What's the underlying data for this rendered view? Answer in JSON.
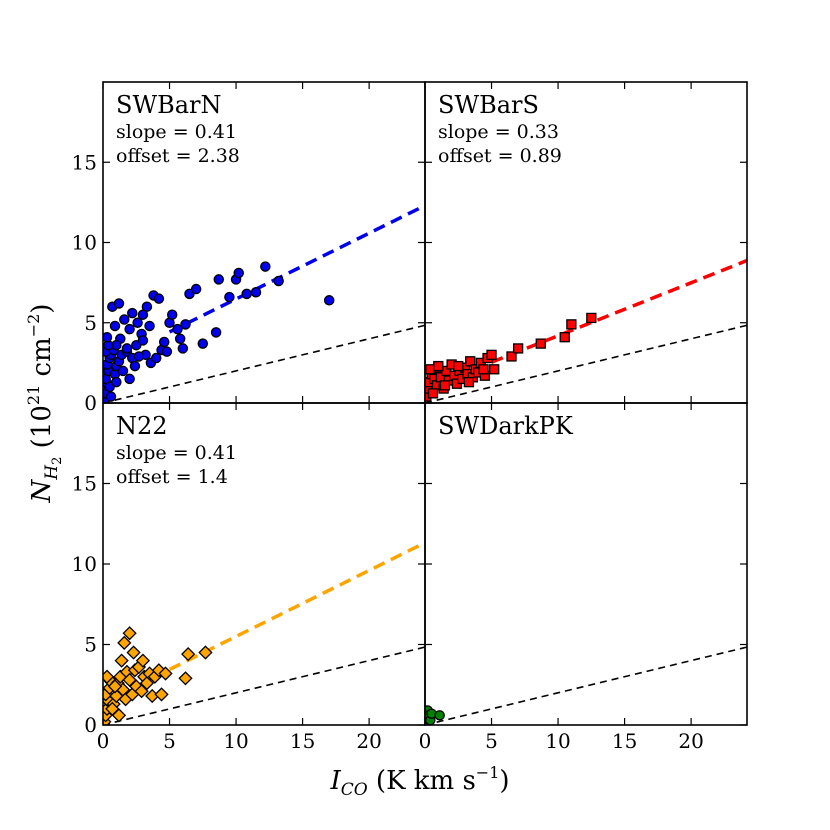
{
  "chart_data": {
    "type": "scatter",
    "layout": "2x2 grid, shared axes",
    "xlabel": "I_CO (K km s^-1)",
    "ylabel": "N_H2 (10^21 cm^-2)",
    "xlim": [
      0,
      24.2
    ],
    "ylim": [
      0,
      20
    ],
    "xticks": [
      0,
      5,
      10,
      15,
      20
    ],
    "yticks": [
      0,
      5,
      10,
      15
    ],
    "reference_line": {
      "slope": 0.2,
      "offset": 0,
      "style": "dashed",
      "color": "#000000"
    },
    "panels": [
      {
        "name": "SWBarN",
        "slope_label": "slope = 0.41",
        "offset_label": "offset = 2.38",
        "slope": 0.41,
        "offset": 2.38,
        "marker": "circle",
        "color": "#0000ee",
        "fit_x_start": 5.0,
        "points": [
          [
            0.1,
            0.2
          ],
          [
            0.2,
            0.6
          ],
          [
            0.3,
            1.2
          ],
          [
            0.2,
            1.5
          ],
          [
            0.4,
            2.0
          ],
          [
            0.3,
            2.4
          ],
          [
            0.5,
            2.8
          ],
          [
            0.6,
            3.0
          ],
          [
            0.2,
            3.2
          ],
          [
            0.8,
            3.3
          ],
          [
            0.5,
            1.0
          ],
          [
            0.9,
            1.8
          ],
          [
            1.0,
            2.3
          ],
          [
            1.2,
            2.6
          ],
          [
            1.5,
            2.0
          ],
          [
            1.4,
            3.0
          ],
          [
            1.8,
            3.2
          ],
          [
            2.0,
            1.5
          ],
          [
            2.2,
            2.8
          ],
          [
            2.5,
            3.6
          ],
          [
            0.7,
            6.0
          ],
          [
            1.2,
            6.2
          ],
          [
            0.9,
            4.8
          ],
          [
            1.3,
            4.0
          ],
          [
            1.6,
            5.2
          ],
          [
            2.0,
            4.6
          ],
          [
            2.2,
            5.6
          ],
          [
            2.6,
            5.0
          ],
          [
            2.9,
            4.3
          ],
          [
            3.0,
            5.5
          ],
          [
            3.3,
            6.0
          ],
          [
            3.5,
            4.8
          ],
          [
            3.8,
            6.7
          ],
          [
            4.2,
            6.5
          ],
          [
            3.2,
            3.0
          ],
          [
            3.6,
            2.5
          ],
          [
            4.0,
            2.8
          ],
          [
            4.4,
            3.3
          ],
          [
            4.6,
            3.8
          ],
          [
            5.0,
            5.0
          ],
          [
            5.2,
            5.5
          ],
          [
            5.6,
            4.6
          ],
          [
            6.0,
            3.4
          ],
          [
            6.2,
            4.9
          ],
          [
            6.5,
            6.8
          ],
          [
            7.0,
            7.1
          ],
          [
            7.5,
            3.7
          ],
          [
            8.5,
            4.4
          ],
          [
            8.7,
            7.7
          ],
          [
            9.5,
            6.6
          ],
          [
            10.0,
            7.7
          ],
          [
            10.2,
            8.1
          ],
          [
            10.8,
            6.8
          ],
          [
            11.5,
            6.9
          ],
          [
            12.2,
            8.5
          ],
          [
            13.2,
            7.6
          ],
          [
            17.0,
            6.4
          ],
          [
            1.0,
            3.6
          ],
          [
            1.8,
            3.4
          ],
          [
            2.7,
            2.9
          ],
          [
            3.0,
            3.9
          ],
          [
            4.8,
            3.2
          ],
          [
            5.8,
            4.0
          ],
          [
            0.4,
            3.6
          ],
          [
            0.3,
            4.1
          ],
          [
            2.4,
            2.3
          ],
          [
            1.0,
            1.3
          ],
          [
            0.6,
            0.4
          ]
        ]
      },
      {
        "name": "SWBarS",
        "slope_label": "slope = 0.33",
        "offset_label": "offset = 0.89",
        "slope": 0.33,
        "offset": 0.89,
        "marker": "square",
        "color": "#ff0000",
        "fit_x_start": 5.0,
        "points": [
          [
            0.1,
            0.4
          ],
          [
            0.2,
            0.9
          ],
          [
            0.3,
            1.3
          ],
          [
            0.5,
            1.8
          ],
          [
            0.4,
            2.1
          ],
          [
            0.7,
            1.5
          ],
          [
            0.9,
            1.1
          ],
          [
            1.0,
            2.2
          ],
          [
            1.2,
            1.6
          ],
          [
            1.4,
            0.9
          ],
          [
            1.6,
            2.0
          ],
          [
            1.8,
            1.4
          ],
          [
            2.0,
            2.4
          ],
          [
            2.2,
            1.7
          ],
          [
            2.4,
            1.2
          ],
          [
            2.6,
            2.0
          ],
          [
            2.8,
            1.5
          ],
          [
            3.0,
            2.2
          ],
          [
            3.2,
            1.8
          ],
          [
            3.4,
            2.6
          ],
          [
            3.6,
            1.6
          ],
          [
            3.8,
            2.1
          ],
          [
            4.0,
            1.9
          ],
          [
            4.2,
            2.5
          ],
          [
            4.5,
            1.7
          ],
          [
            4.7,
            2.8
          ],
          [
            5.0,
            3.0
          ],
          [
            5.2,
            2.1
          ],
          [
            1.0,
            2.3
          ],
          [
            2.5,
            2.3
          ],
          [
            0.6,
            0.6
          ],
          [
            1.5,
            1.1
          ],
          [
            3.3,
            1.3
          ],
          [
            4.4,
            2.1
          ],
          [
            6.5,
            2.9
          ],
          [
            7.0,
            3.4
          ],
          [
            8.7,
            3.7
          ],
          [
            10.5,
            4.1
          ],
          [
            11.0,
            4.9
          ],
          [
            12.5,
            5.3
          ]
        ]
      },
      {
        "name": "N22",
        "slope_label": "slope = 0.41",
        "offset_label": "offset = 1.4",
        "slope": 0.41,
        "offset": 1.4,
        "marker": "diamond",
        "color": "#ffa500",
        "fit_x_start": 5.0,
        "points": [
          [
            0.1,
            0.2
          ],
          [
            0.2,
            0.6
          ],
          [
            0.3,
            1.0
          ],
          [
            0.4,
            1.5
          ],
          [
            0.2,
            1.9
          ],
          [
            0.5,
            2.3
          ],
          [
            0.6,
            2.7
          ],
          [
            0.8,
            1.3
          ],
          [
            1.0,
            1.8
          ],
          [
            1.1,
            2.6
          ],
          [
            1.3,
            3.0
          ],
          [
            1.5,
            2.2
          ],
          [
            1.7,
            1.6
          ],
          [
            1.8,
            3.3
          ],
          [
            2.0,
            2.8
          ],
          [
            2.2,
            1.9
          ],
          [
            2.4,
            3.4
          ],
          [
            2.5,
            2.4
          ],
          [
            2.7,
            3.6
          ],
          [
            2.9,
            2.1
          ],
          [
            3.1,
            3.0
          ],
          [
            3.3,
            2.6
          ],
          [
            3.5,
            3.2
          ],
          [
            3.7,
            1.8
          ],
          [
            3.9,
            3.0
          ],
          [
            4.2,
            3.4
          ],
          [
            4.4,
            1.9
          ],
          [
            4.7,
            3.2
          ],
          [
            2.0,
            5.7
          ],
          [
            1.6,
            5.1
          ],
          [
            1.4,
            4.0
          ],
          [
            0.9,
            2.4
          ],
          [
            2.3,
            4.5
          ],
          [
            3.0,
            4.0
          ],
          [
            6.2,
            2.9
          ],
          [
            6.4,
            4.4
          ],
          [
            7.7,
            4.5
          ],
          [
            0.3,
            3.0
          ],
          [
            0.7,
            1.0
          ],
          [
            1.2,
            0.6
          ]
        ]
      },
      {
        "name": "SWDarkPK",
        "slope_label": "",
        "offset_label": "",
        "marker": "circle",
        "color": "#008000",
        "points": [
          [
            0.1,
            0.1
          ],
          [
            0.1,
            0.4
          ],
          [
            0.2,
            0.9
          ],
          [
            0.3,
            0.6
          ],
          [
            0.4,
            0.3
          ],
          [
            0.5,
            0.7
          ],
          [
            1.1,
            0.6
          ]
        ]
      }
    ]
  }
}
